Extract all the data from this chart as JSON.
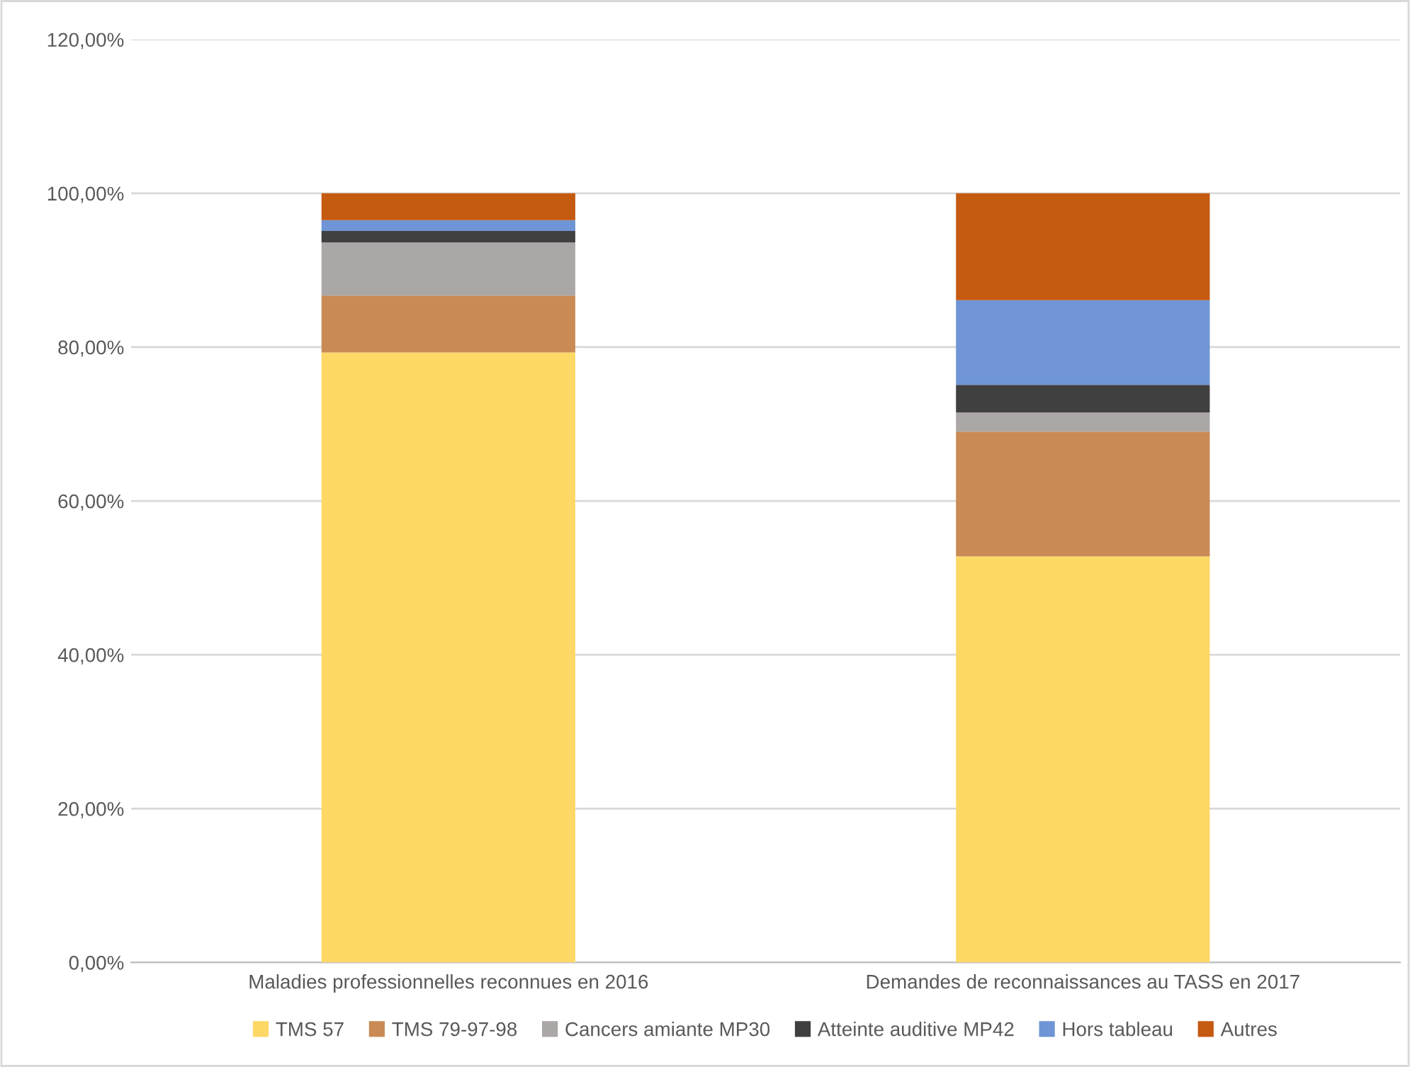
{
  "chart_data": {
    "type": "bar",
    "stacked": true,
    "categories": [
      "Maladies professionnelles reconnues en 2016",
      "Demandes de reconnaissances au TASS en 2017"
    ],
    "series": [
      {
        "name": "TMS 57",
        "color": "#fdd865",
        "values": [
          79.3,
          52.8
        ]
      },
      {
        "name": "TMS 79-97-98",
        "color": "#c98a55",
        "values": [
          7.4,
          16.2
        ]
      },
      {
        "name": "Cancers amiante MP30",
        "color": "#aaa7a6",
        "values": [
          6.9,
          2.5
        ]
      },
      {
        "name": "Atteinte auditive MP42",
        "color": "#404040",
        "values": [
          1.5,
          3.6
        ]
      },
      {
        "name": "Hors tableau",
        "color": "#6f95d6",
        "values": [
          1.4,
          11.0
        ]
      },
      {
        "name": "Autres",
        "color": "#c55a11",
        "values": [
          3.5,
          13.9
        ]
      }
    ],
    "ylim": [
      0,
      120
    ],
    "yticks": [
      {
        "value": 0,
        "label": "0,00%"
      },
      {
        "value": 20,
        "label": "20,00%"
      },
      {
        "value": 40,
        "label": "40,00%"
      },
      {
        "value": 60,
        "label": "60,00%"
      },
      {
        "value": 80,
        "label": "80,00%"
      },
      {
        "value": 100,
        "label": "100,00%"
      },
      {
        "value": 120,
        "label": "120,00%"
      }
    ],
    "grid": "y",
    "legend": "bottom"
  }
}
